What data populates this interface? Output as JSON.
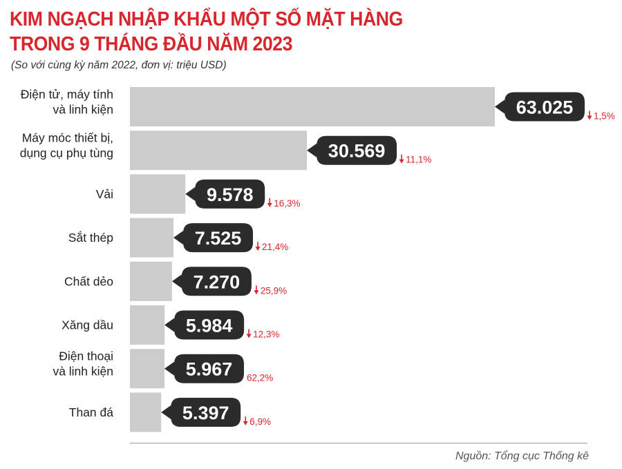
{
  "header": {
    "title_line1": "KIM NGẠCH NHẬP KHẨU MỘT SỐ MẶT HÀNG",
    "title_line2": "TRONG 9 THÁNG ĐẦU NĂM 2023",
    "subtitle": "(So với cùng kỳ năm 2022, đơn vị: triệu USD)"
  },
  "footer": {
    "source": "Nguồn: Tổng cục Thống kê"
  },
  "colors": {
    "title": "#d7262c",
    "bar": "#cccccc",
    "callout": "#2b2b2b",
    "change": "#d7262c"
  },
  "chart_data": {
    "type": "bar",
    "orientation": "horizontal",
    "categories": [
      [
        "Điện tử, máy tính",
        "và linh kiện"
      ],
      [
        "Máy móc thiết bị,",
        "dụng cụ phụ tùng"
      ],
      [
        "Vải"
      ],
      [
        "Sắt thép"
      ],
      [
        "Chất dẻo"
      ],
      [
        "Xăng dầu"
      ],
      [
        "Điện thoại",
        "và linh kiện"
      ],
      [
        "Than đá"
      ]
    ],
    "values": [
      63025,
      30569,
      9578,
      7525,
      7270,
      5984,
      5967,
      5397
    ],
    "value_labels": [
      "63.025",
      "30.569",
      "9.578",
      "7.525",
      "7.270",
      "5.984",
      "5.967",
      "5.397"
    ],
    "changes": [
      {
        "dir": "down",
        "text": "1,5%"
      },
      {
        "dir": "down",
        "text": "11,1%"
      },
      {
        "dir": "down",
        "text": "16,3%"
      },
      {
        "dir": "down",
        "text": "21,4%"
      },
      {
        "dir": "down",
        "text": "25,9%"
      },
      {
        "dir": "down",
        "text": "12,3%"
      },
      {
        "dir": "none",
        "text": "62,2%"
      },
      {
        "dir": "down",
        "text": "6,9%"
      }
    ],
    "xlim": [
      0,
      63025
    ]
  }
}
